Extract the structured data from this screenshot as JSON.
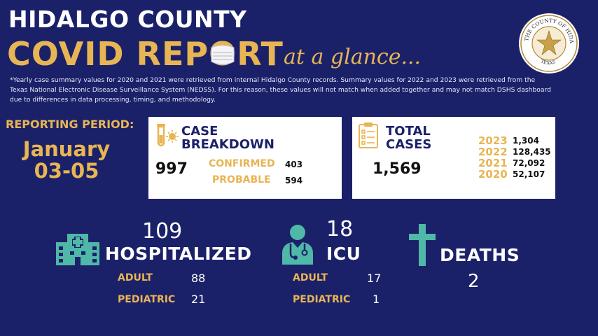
{
  "header": {
    "line1": "HIDALGO COUNTY",
    "line2": "COVID REPORT",
    "line3": "at a glance...",
    "note": "*Yearly case summary values for 2020 and 2021 were retrieved from internal Hidalgo County records. Summary values for 2022 and 2023 were retrieved from the Texas National Electronic Disease Surveillance System (NEDSS). For this reason, these values will not match when added together and may not match DSHS dashboard due to differences in data processing, timing, and methodology."
  },
  "seal": {
    "text_top": "THE COUNTY OF HIDALGO",
    "text_bottom": "TEXAS"
  },
  "reporting": {
    "label": "REPORTING PERIOD:",
    "month": "January",
    "days": "03-05"
  },
  "case_breakdown": {
    "title_line1": "CASE",
    "title_line2": "BREAKDOWN",
    "total": "997",
    "confirmed_label": "CONFIRMED",
    "confirmed_value": "403",
    "probable_label": "PROBABLE",
    "probable_value": "594",
    "icon": "test-tube-virus-icon"
  },
  "total_cases": {
    "title_line1": "TOTAL",
    "title_line2": "CASES",
    "total": "1,569",
    "icon": "clipboard-checklist-icon",
    "years": [
      {
        "year": "2023",
        "value": "1,304"
      },
      {
        "year": "2022",
        "value": "128,435"
      },
      {
        "year": "2021",
        "value": "72,092"
      },
      {
        "year": "2020",
        "value": "52,107"
      }
    ]
  },
  "hospitalized": {
    "number": "109",
    "label": "HOSPITALIZED",
    "adult_label": "ADULT",
    "adult_value": "88",
    "pediatric_label": "PEDIATRIC",
    "pediatric_value": "21",
    "icon": "hospital-icon"
  },
  "icu": {
    "number": "18",
    "label": "ICU",
    "adult_label": "ADULT",
    "adult_value": "17",
    "pediatric_label": "PEDIATRIC",
    "pediatric_value": "1",
    "icon": "doctor-icon"
  },
  "deaths": {
    "label": "DEATHS",
    "number": "2",
    "icon": "cross-icon"
  },
  "colors": {
    "background": "#1b2169",
    "gold": "#e8b554",
    "teal": "#4fb8a8",
    "card": "#ffffff"
  }
}
